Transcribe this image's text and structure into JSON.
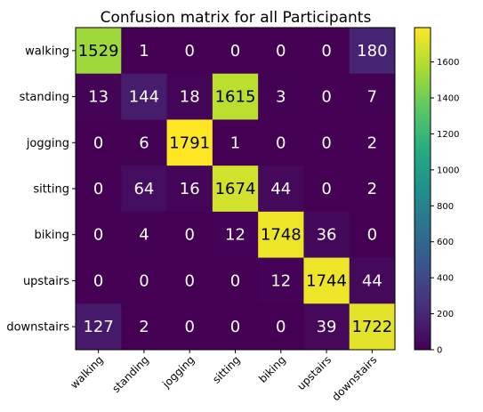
{
  "chart_data": {
    "type": "heatmap",
    "title": "Confusion matrix for all Participants",
    "row_labels": [
      "walking",
      "standing",
      "jogging",
      "sitting",
      "biking",
      "upstairs",
      "downstairs"
    ],
    "col_labels": [
      "walking",
      "standing",
      "jogging",
      "sitting",
      "biking",
      "upstairs",
      "downstairs"
    ],
    "values": [
      [
        1529,
        1,
        0,
        0,
        0,
        0,
        180
      ],
      [
        13,
        144,
        18,
        1615,
        3,
        0,
        7
      ],
      [
        0,
        6,
        1791,
        1,
        0,
        0,
        2
      ],
      [
        0,
        64,
        16,
        1674,
        44,
        0,
        2
      ],
      [
        0,
        4,
        0,
        12,
        1748,
        36,
        0
      ],
      [
        0,
        0,
        0,
        0,
        12,
        1744,
        44
      ],
      [
        127,
        2,
        0,
        0,
        0,
        39,
        1722
      ]
    ],
    "colormap": "viridis",
    "vmin": 0,
    "vmax": 1791,
    "colorbar_ticks": [
      0,
      200,
      400,
      600,
      800,
      1000,
      1200,
      1400,
      1600
    ],
    "colorbar_tick_labels": [
      "0",
      "200",
      "400",
      "600",
      "800",
      "1000",
      "1200",
      "1400",
      "1600"
    ]
  }
}
